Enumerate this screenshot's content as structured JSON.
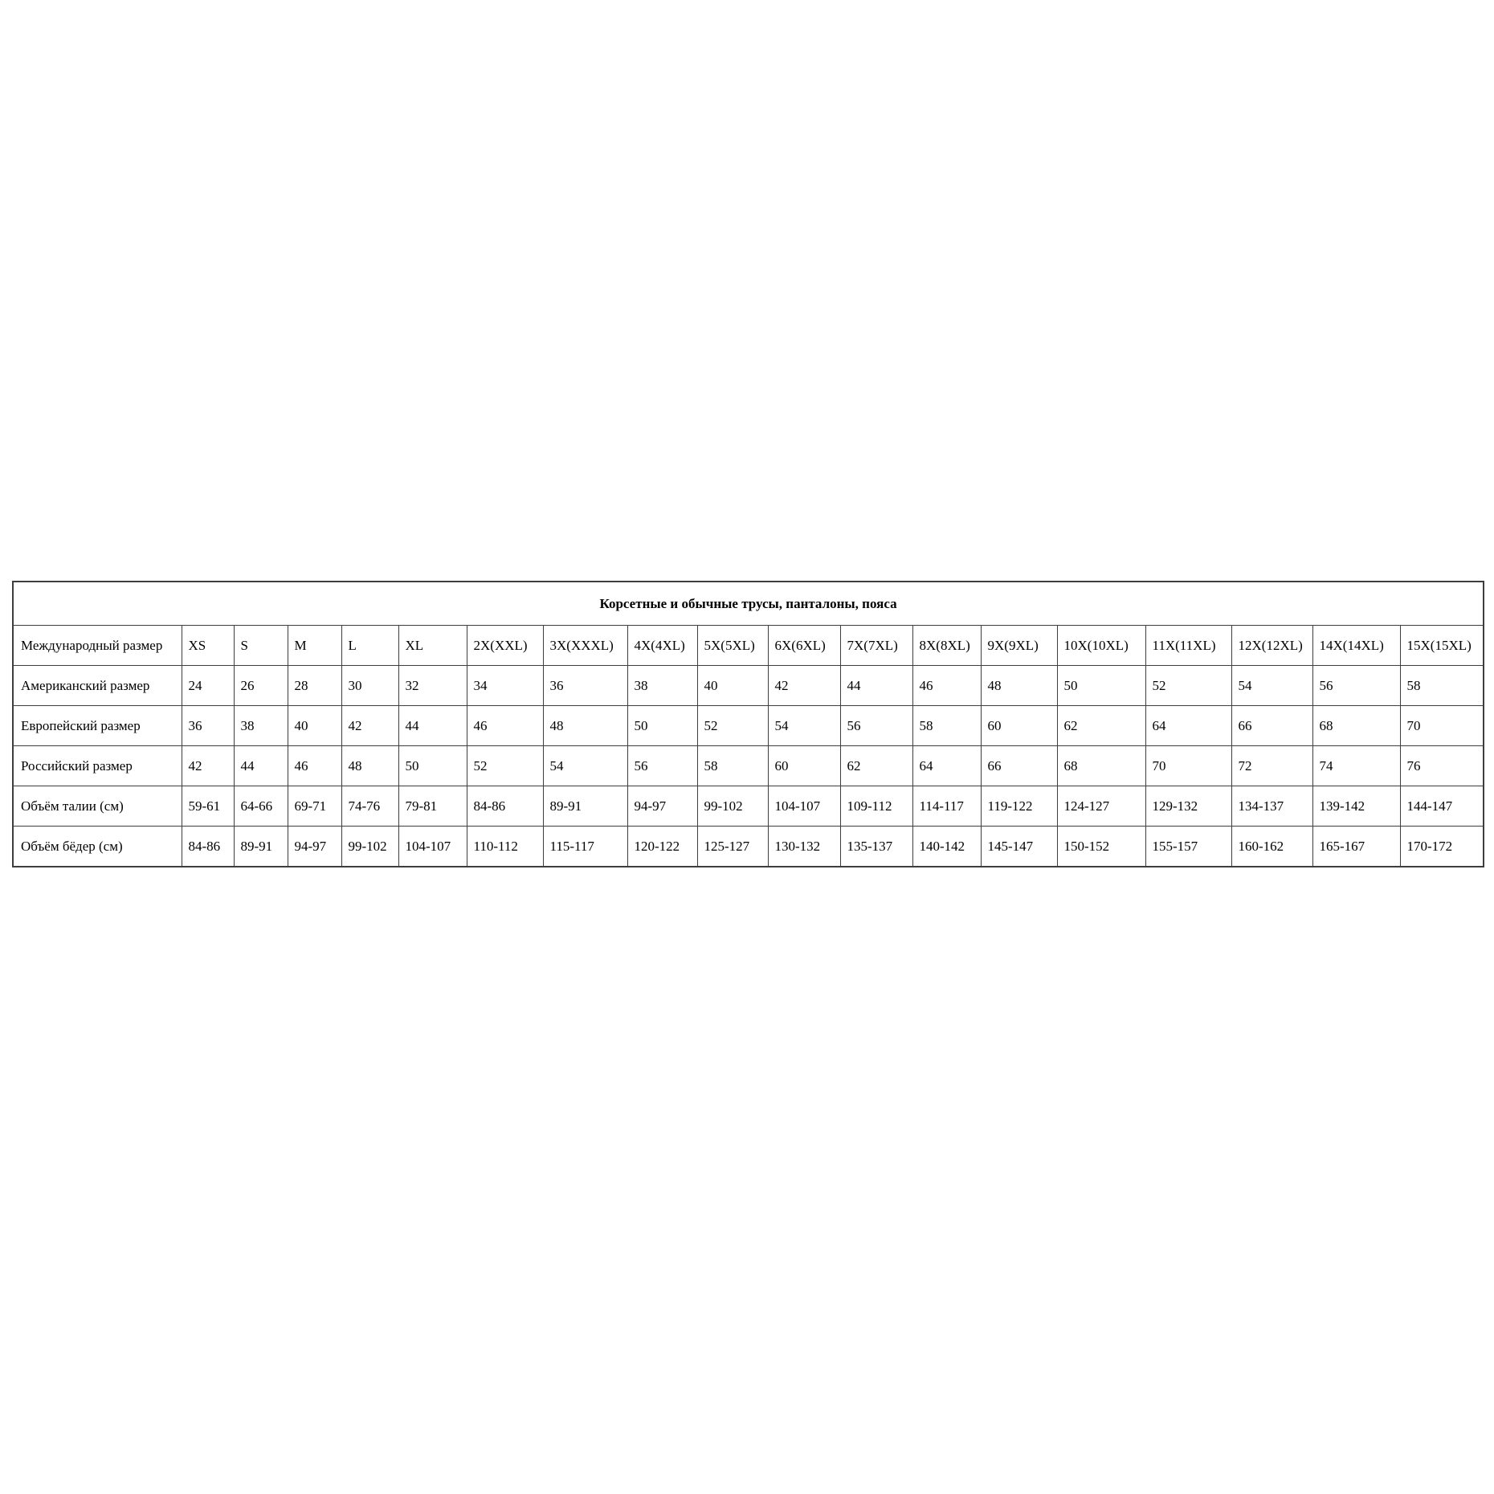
{
  "table": {
    "title": "Корсетные и обычные трусы, панталоны, пояса",
    "rows": [
      {
        "label": "Международный размер",
        "values": [
          "XS",
          "S",
          "M",
          "L",
          "XL",
          "2X(XXL)",
          "3X(XXXL)",
          "4X(4XL)",
          "5X(5XL)",
          "6X(6XL)",
          "7X(7XL)",
          "8X(8XL)",
          "9X(9XL)",
          "10X(10XL)",
          "11X(11XL)",
          "12X(12XL)",
          "14X(14XL)",
          "15X(15XL)"
        ]
      },
      {
        "label": "Американский размер",
        "values": [
          "24",
          "26",
          "28",
          "30",
          "32",
          "34",
          "36",
          "38",
          "40",
          "42",
          "44",
          "46",
          "48",
          "50",
          "52",
          "54",
          "56",
          "58"
        ]
      },
      {
        "label": "Европейский размер",
        "values": [
          "36",
          "38",
          "40",
          "42",
          "44",
          "46",
          "48",
          "50",
          "52",
          "54",
          "56",
          "58",
          "60",
          "62",
          "64",
          "66",
          "68",
          "70"
        ]
      },
      {
        "label": "Российский размер",
        "values": [
          "42",
          "44",
          "46",
          "48",
          "50",
          "52",
          "54",
          "56",
          "58",
          "60",
          "62",
          "64",
          "66",
          "68",
          "70",
          "72",
          "74",
          "76"
        ]
      },
      {
        "label": "Объём талии (см)",
        "values": [
          "59-61",
          "64-66",
          "69-71",
          "74-76",
          "79-81",
          "84-86",
          "89-91",
          "94-97",
          "99-102",
          "104-107",
          "109-112",
          "114-117",
          "119-122",
          "124-127",
          "129-132",
          "134-137",
          "139-142",
          "144-147"
        ]
      },
      {
        "label": "Объём бёдер (см)",
        "values": [
          "84-86",
          "89-91",
          "94-97",
          "99-102",
          "104-107",
          "110-112",
          "115-117",
          "120-122",
          "125-127",
          "130-132",
          "135-137",
          "140-142",
          "145-147",
          "150-152",
          "155-157",
          "160-162",
          "165-167",
          "170-172"
        ]
      }
    ]
  }
}
